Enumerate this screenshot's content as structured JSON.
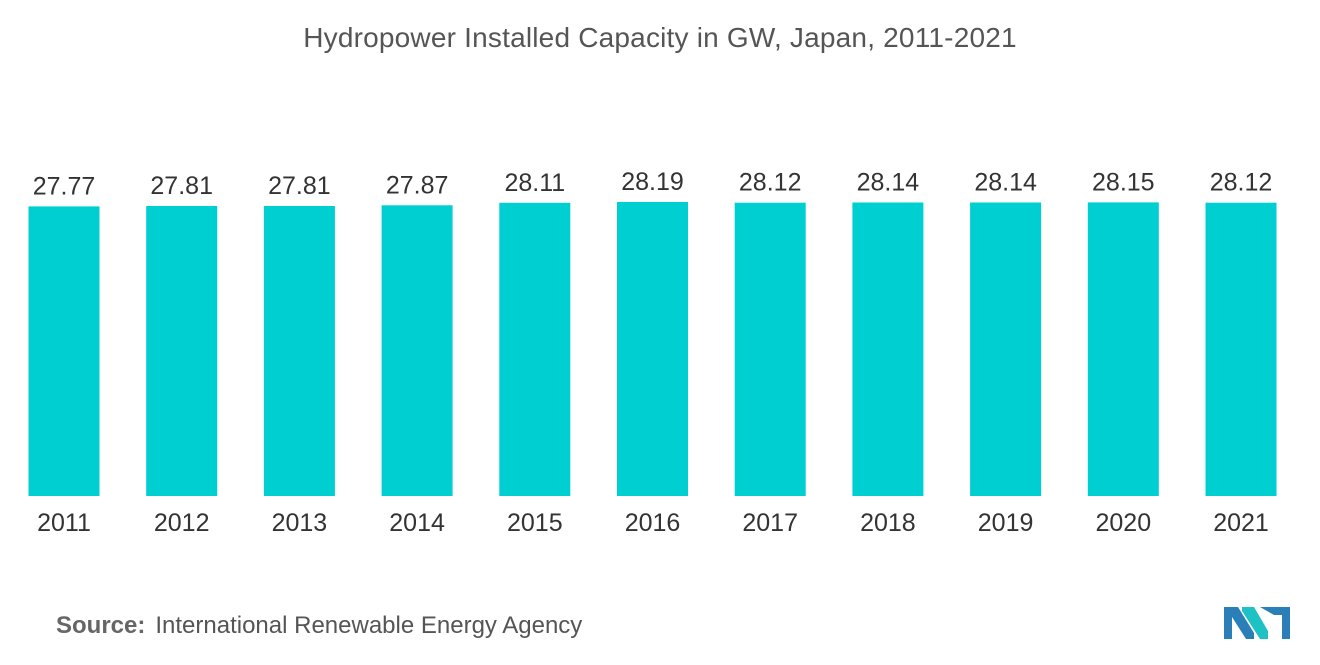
{
  "title": "Hydropower Installed Capacity in GW, Japan, 2011-2021",
  "source": {
    "label": "Source:",
    "text": "International Renewable Energy Agency"
  },
  "logo": {
    "icon": "mordor-intelligence-logo-icon"
  },
  "colors": {
    "bar": "#00CFD1",
    "text": "#333333"
  },
  "chart_data": {
    "type": "bar",
    "title": "Hydropower Installed Capacity in GW, Japan, 2011-2021",
    "xlabel": "",
    "ylabel": "",
    "categories": [
      "2011",
      "2012",
      "2013",
      "2014",
      "2015",
      "2016",
      "2017",
      "2018",
      "2019",
      "2020",
      "2021"
    ],
    "values": [
      27.77,
      27.81,
      27.81,
      27.87,
      28.11,
      28.19,
      28.12,
      28.14,
      28.14,
      28.15,
      28.12
    ],
    "data_labels": [
      "27.77",
      "27.81",
      "27.81",
      "27.87",
      "28.11",
      "28.19",
      "28.12",
      "28.14",
      "28.14",
      "28.15",
      "28.12"
    ],
    "ylim": [
      0,
      28.19
    ],
    "grid": false,
    "legend": "none"
  }
}
